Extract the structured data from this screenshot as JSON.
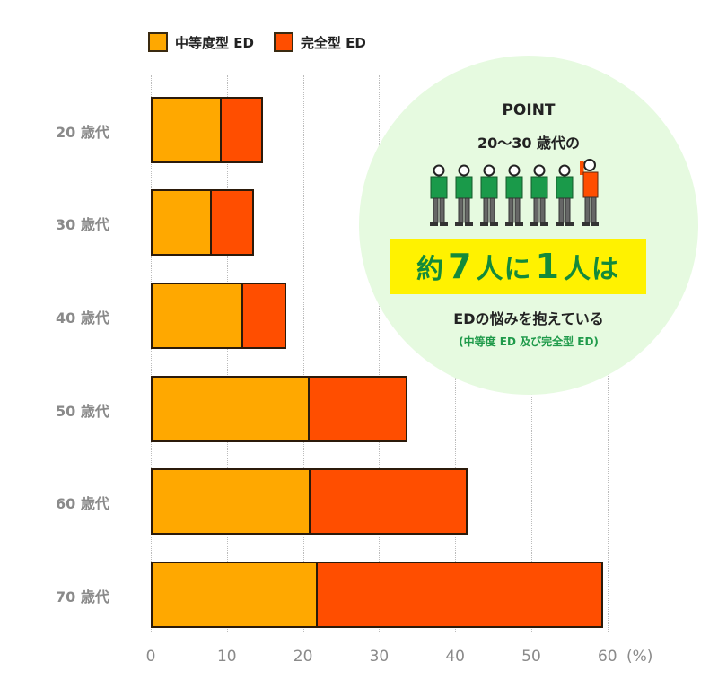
{
  "legend": [
    {
      "label": "中等度型 ED",
      "color": "#ffa800"
    },
    {
      "label": "完全型 ED",
      "color": "#ff4e00"
    }
  ],
  "axis": {
    "ticks": [
      "0",
      "10",
      "20",
      "30",
      "40",
      "50",
      "60"
    ],
    "unit": "(%)"
  },
  "rows": [
    {
      "label": "20 歳代"
    },
    {
      "label": "30 歳代"
    },
    {
      "label": "40 歳代"
    },
    {
      "label": "50 歳代"
    },
    {
      "label": "60 歳代"
    },
    {
      "label": "70 歳代"
    }
  ],
  "point": {
    "title": "POINT",
    "subtitle": "20〜30 歳代の",
    "highlight_prefix": "約",
    "highlight_num1": "7",
    "highlight_mid": "人に",
    "highlight_num2": "1",
    "highlight_suffix": "人は",
    "line1": "EDの悩みを抱えている",
    "line2": "(中等度 ED 及び完全型 ED)",
    "people_total": 7,
    "people_highlighted": 1,
    "colors": {
      "circle": "#e6fae0",
      "highlight_bg": "#fff200",
      "highlight_text": "#138a3a",
      "person_green": "#1a9a4a",
      "person_orange": "#ff4e00"
    }
  },
  "chart_data": {
    "type": "bar",
    "orientation": "horizontal",
    "stacked": true,
    "title": "",
    "categories": [
      "20 歳代",
      "30 歳代",
      "40 歳代",
      "50 歳代",
      "60 歳代",
      "70 歳代"
    ],
    "series": [
      {
        "name": "中等度型 ED",
        "color": "#ffa800",
        "values": [
          9.1,
          7.8,
          11.9,
          20.6,
          20.8,
          21.7
        ]
      },
      {
        "name": "完全型 ED",
        "color": "#ff4e00",
        "values": [
          5.6,
          5.8,
          5.9,
          13.1,
          20.8,
          37.7
        ]
      }
    ],
    "totals": [
      14.7,
      13.6,
      17.8,
      33.7,
      41.6,
      59.4
    ],
    "xlabel": "(%)",
    "ylabel": "",
    "xlim": [
      0,
      60
    ],
    "xticks": [
      0,
      10,
      20,
      30,
      40,
      50,
      60
    ],
    "grid": "vertical dotted",
    "legend_position": "top-left",
    "annotation": "POINT 20〜30 歳代の 約7人に1人は EDの悩みを抱えている (中等度 ED 及び完全型 ED)"
  }
}
